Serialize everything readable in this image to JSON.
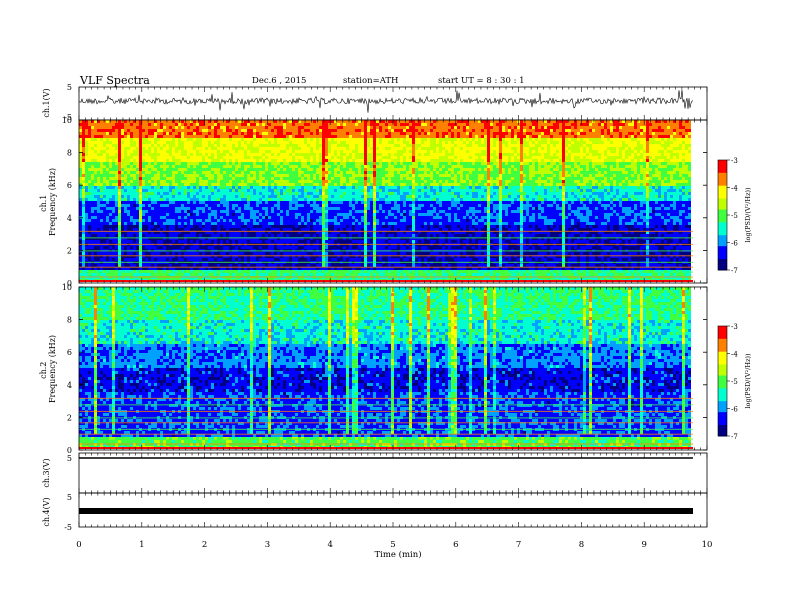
{
  "header": {
    "title": "VLF  Spectra",
    "date": "Dec.6  , 2015",
    "station": "station=ATH",
    "start": "start  UT  =   8 : 30 : 1"
  },
  "colors": {
    "colormap": [
      "#000080",
      "#0000ff",
      "#00a0ff",
      "#00ffd0",
      "#40ff40",
      "#c0ff00",
      "#ffff00",
      "#ff8000",
      "#ff0000",
      "#ffe0e0"
    ]
  },
  "chart_data": [
    {
      "type": "line",
      "id": "ch1-waveform",
      "ylabel": "ch.1(V)",
      "ylim": [
        -5,
        5
      ],
      "yticks": [
        "5",
        "-5"
      ],
      "xlim": [
        0,
        10
      ]
    },
    {
      "type": "heatmap",
      "id": "ch1-spectrogram",
      "ylabel": "ch.1\nFrequency  (kHz)",
      "ylabel_lines": [
        "ch.1",
        "Frequency  (kHz)"
      ],
      "ylim": [
        0,
        10
      ],
      "yticks": [
        "0",
        "2",
        "4",
        "6",
        "8",
        "10"
      ],
      "xlim": [
        0,
        9.8
      ],
      "colorbar": {
        "label": "log(PSD/(V²/Hz))",
        "range": [
          -7,
          -3
        ],
        "ticks": [
          "-3",
          "-4",
          "-5",
          "-6",
          "-7"
        ]
      }
    },
    {
      "type": "heatmap",
      "id": "ch2-spectrogram",
      "ylabel": "ch.2\nFrequency  (kHz)",
      "ylabel_lines": [
        "ch.2",
        "Frequency  (kHz)"
      ],
      "ylim": [
        0,
        10
      ],
      "yticks": [
        "0",
        "2",
        "4",
        "6",
        "8",
        "10"
      ],
      "xlim": [
        0,
        9.8
      ],
      "colorbar": {
        "label": "log(PSD/(V²/Hz))",
        "range": [
          -7,
          -3
        ],
        "ticks": [
          "-3",
          "-4",
          "-5",
          "-6",
          "-7"
        ]
      }
    },
    {
      "type": "line",
      "id": "ch3-waveform",
      "ylabel": "ch.3(V)",
      "ylim": [
        -5,
        5
      ],
      "yticks": [
        "5"
      ],
      "values_note": "flat near +5 V"
    },
    {
      "type": "line",
      "id": "ch4-waveform",
      "ylabel": "ch.4(V)",
      "ylim": [
        -5,
        5
      ],
      "yticks": [
        "5",
        "-5"
      ],
      "values_note": "flat near 0 V"
    }
  ],
  "xaxis": {
    "label": "Time  (min)",
    "ticks": [
      "0",
      "1",
      "2",
      "3",
      "4",
      "5",
      "6",
      "7",
      "8",
      "9",
      "10"
    ],
    "range": [
      0,
      10
    ]
  }
}
